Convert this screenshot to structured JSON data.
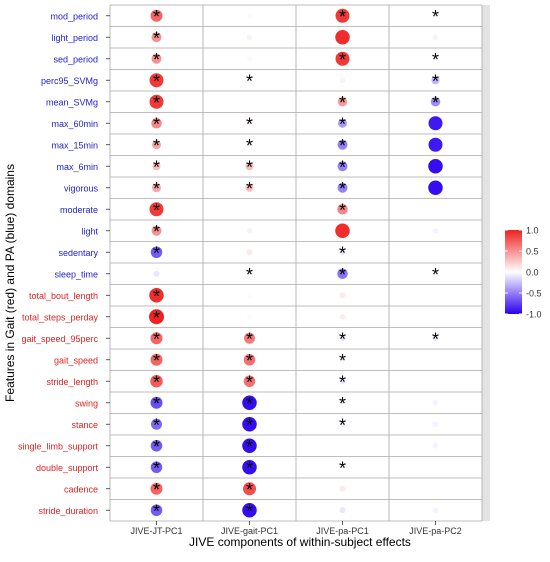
{
  "chart_data": {
    "type": "heatmap",
    "title": "",
    "xlabel": "JIVE components of within-subject effects",
    "ylabel": "Features in Gait (red) and PA (blue) domains",
    "columns": [
      "JIVE-JT-PC1",
      "JIVE-gait-PC1",
      "JIVE-pa-PC1",
      "JIVE-pa-PC2"
    ],
    "rows": [
      {
        "label": "mod_period",
        "domain": "PA"
      },
      {
        "label": "light_period",
        "domain": "PA"
      },
      {
        "label": "sed_period",
        "domain": "PA"
      },
      {
        "label": "perc95_SVMg",
        "domain": "PA"
      },
      {
        "label": "mean_SVMg",
        "domain": "PA"
      },
      {
        "label": "max_60min",
        "domain": "PA"
      },
      {
        "label": "max_15min",
        "domain": "PA"
      },
      {
        "label": "max_6min",
        "domain": "PA"
      },
      {
        "label": "vigorous",
        "domain": "PA"
      },
      {
        "label": "moderate",
        "domain": "PA"
      },
      {
        "label": "light",
        "domain": "PA"
      },
      {
        "label": "sedentary",
        "domain": "PA"
      },
      {
        "label": "sleep_time",
        "domain": "PA"
      },
      {
        "label": "total_bout_length",
        "domain": "Gait"
      },
      {
        "label": "total_steps_perday",
        "domain": "Gait"
      },
      {
        "label": "gait_speed_95perc",
        "domain": "Gait"
      },
      {
        "label": "gait_speed",
        "domain": "Gait"
      },
      {
        "label": "stride_length",
        "domain": "Gait"
      },
      {
        "label": "swing",
        "domain": "Gait"
      },
      {
        "label": "stance",
        "domain": "Gait"
      },
      {
        "label": "single_limb_support",
        "domain": "Gait"
      },
      {
        "label": "double_support",
        "domain": "Gait"
      },
      {
        "label": "cadence",
        "domain": "Gait"
      },
      {
        "label": "stride_duration",
        "domain": "Gait"
      }
    ],
    "values": [
      [
        0.7,
        0.02,
        0.9,
        0.0
      ],
      [
        0.5,
        -0.05,
        0.95,
        -0.05
      ],
      [
        0.5,
        0.03,
        0.9,
        0.0
      ],
      [
        0.9,
        0.03,
        -0.05,
        -0.3
      ],
      [
        0.9,
        0.0,
        0.45,
        -0.45
      ],
      [
        0.55,
        0.05,
        -0.4,
        -0.9
      ],
      [
        0.4,
        0.05,
        -0.5,
        -0.9
      ],
      [
        0.3,
        0.3,
        -0.5,
        -0.95
      ],
      [
        0.4,
        0.3,
        -0.5,
        -0.95
      ],
      [
        0.9,
        0.0,
        0.55,
        0.0
      ],
      [
        0.5,
        -0.05,
        0.95,
        -0.05
      ],
      [
        -0.65,
        0.1,
        -0.1,
        0.0
      ],
      [
        -0.1,
        0.03,
        -0.55,
        0.0
      ],
      [
        0.95,
        0.02,
        0.1,
        0.0
      ],
      [
        1.0,
        0.02,
        0.08,
        0.0
      ],
      [
        0.7,
        0.6,
        -0.1,
        -0.1
      ],
      [
        0.7,
        0.65,
        0.0,
        0.0
      ],
      [
        0.75,
        0.65,
        -0.1,
        0.0
      ],
      [
        -0.7,
        -0.95,
        0.0,
        -0.05
      ],
      [
        -0.6,
        -0.95,
        -0.05,
        -0.05
      ],
      [
        -0.65,
        -0.95,
        0.0,
        -0.05
      ],
      [
        -0.65,
        -0.95,
        0.0,
        0.0
      ],
      [
        0.7,
        0.8,
        0.1,
        0.0
      ],
      [
        -0.65,
        -0.95,
        -0.1,
        -0.05
      ]
    ],
    "significant": [
      [
        true,
        false,
        true,
        true
      ],
      [
        true,
        false,
        false,
        false
      ],
      [
        true,
        false,
        true,
        true
      ],
      [
        true,
        true,
        false,
        true
      ],
      [
        true,
        false,
        true,
        true
      ],
      [
        true,
        true,
        true,
        false
      ],
      [
        true,
        true,
        true,
        false
      ],
      [
        true,
        true,
        true,
        false
      ],
      [
        true,
        true,
        true,
        false
      ],
      [
        true,
        false,
        true,
        false
      ],
      [
        true,
        false,
        false,
        false
      ],
      [
        true,
        false,
        true,
        false
      ],
      [
        false,
        true,
        true,
        true
      ],
      [
        true,
        false,
        false,
        false
      ],
      [
        true,
        false,
        false,
        false
      ],
      [
        true,
        true,
        true,
        true
      ],
      [
        true,
        true,
        true,
        false
      ],
      [
        true,
        true,
        true,
        false
      ],
      [
        true,
        true,
        true,
        false
      ],
      [
        true,
        true,
        true,
        false
      ],
      [
        true,
        true,
        false,
        false
      ],
      [
        true,
        true,
        true,
        false
      ],
      [
        true,
        true,
        false,
        false
      ],
      [
        true,
        true,
        false,
        false
      ]
    ],
    "significance_symbol": "*",
    "legend": {
      "position": "right",
      "ticks": [
        "1.0",
        "0.5",
        "0.0",
        "-0.5",
        "-1.0"
      ],
      "min": -1.0,
      "max": 1.0
    },
    "colors": {
      "high": "#ee2222",
      "mid": "#ffffff",
      "low": "#2a00ee",
      "gait_label": "#dd2222",
      "pa_label": "#2222cc"
    }
  }
}
